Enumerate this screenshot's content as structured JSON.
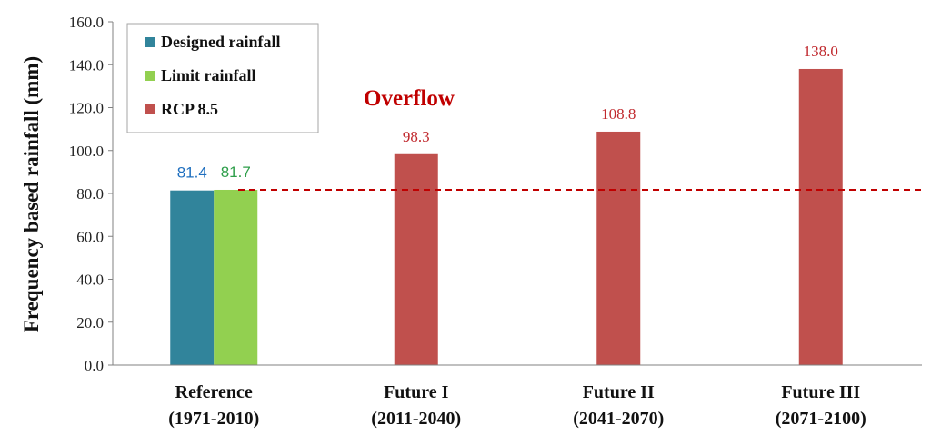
{
  "chart_data": {
    "type": "bar",
    "title": "",
    "ylabel": "Frequency based rainfall (mm)",
    "xlabel": "",
    "ylim": [
      0,
      160
    ],
    "y_ticks": [
      "0.0",
      "20.0",
      "40.0",
      "60.0",
      "80.0",
      "100.0",
      "120.0",
      "140.0",
      "160.0"
    ],
    "categories": [
      {
        "line1": "Reference",
        "line2": "(1971-2010)"
      },
      {
        "line1": "Future I",
        "line2": "(2011-2040)"
      },
      {
        "line1": "Future II",
        "line2": "(2041-2070)"
      },
      {
        "line1": "Future III",
        "line2": "(2071-2100)"
      }
    ],
    "series": [
      {
        "name": "Designed rainfall",
        "color": "#31849b",
        "values": [
          81.4,
          null,
          null,
          null
        ],
        "labels": [
          "81.4",
          "",
          "",
          ""
        ],
        "label_color": "#1f6fbf"
      },
      {
        "name": "Limit rainfall",
        "color": "#92d050",
        "values": [
          81.7,
          null,
          null,
          null
        ],
        "labels": [
          "81.7",
          "",
          "",
          ""
        ],
        "label_color": "#2e9e4a"
      },
      {
        "name": "RCP 8.5",
        "color": "#c0504d",
        "values": [
          null,
          98.3,
          108.8,
          138.0
        ],
        "labels": [
          "",
          "98.3",
          "108.8",
          "138.0"
        ],
        "label_color": "#c0282d"
      }
    ],
    "threshold": {
      "value": 81.7,
      "style": "dashed",
      "color": "#c00000"
    },
    "annotation": {
      "text": "Overflow",
      "color": "#c00000"
    },
    "legend_position": "top-left",
    "grid": false
  }
}
